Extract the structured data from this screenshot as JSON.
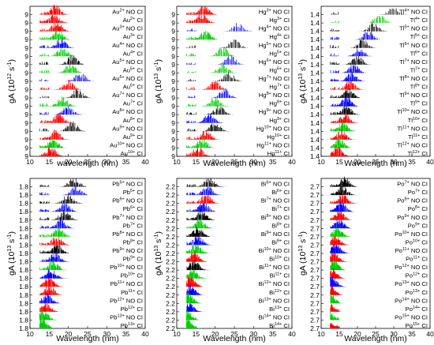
{
  "chart_data": [
    {
      "type": "line",
      "panel": "Au",
      "xlabel": "wavelength (nm)",
      "ylabel": "gA (10^12 s^-1)",
      "ylabel_parts": {
        "base": "gA (10",
        "exp": "12",
        "mid": " s",
        "exp2": "-1",
        "end": ")"
      },
      "xlim": [
        10,
        40
      ],
      "xticks": [
        10,
        15,
        20,
        25,
        30,
        35,
        40
      ],
      "ytick_label": "9",
      "series": [
        {
          "ion": "Au",
          "charge": "2+",
          "label": "NO CI",
          "color": "#ff0000",
          "peak_x": 16.5
        },
        {
          "ion": "Au",
          "charge": "2+",
          "label": "CI",
          "color": "#ff0000",
          "peak_x": 16.3
        },
        {
          "ion": "Au",
          "charge": "3+",
          "label": "NO CI",
          "color": "#ff0000",
          "peak_x": 17.0
        },
        {
          "ion": "Au",
          "charge": "3+",
          "label": "CI",
          "color": "#00cc00",
          "peak_x": 17.2
        },
        {
          "ion": "Au",
          "charge": "4+",
          "label": "NO CI",
          "color": "#0000ff",
          "peak_x": 18.0
        },
        {
          "ion": "Au",
          "charge": "4+",
          "label": "CI",
          "color": "#00cc00",
          "peak_x": 18.4
        },
        {
          "ion": "Au",
          "charge": "5+",
          "label": "NO CI",
          "color": "#000000",
          "peak_x": 21.0
        },
        {
          "ion": "Au",
          "charge": "5+",
          "label": "CI",
          "color": "#00cc00",
          "peak_x": 20.5
        },
        {
          "ion": "Au",
          "charge": "6+",
          "label": "NO CI",
          "color": "#0000ff",
          "peak_x": 23.0
        },
        {
          "ion": "Au",
          "charge": "6+",
          "label": "CI",
          "color": "#ff0000",
          "peak_x": 20.0
        },
        {
          "ion": "Au",
          "charge": "7+",
          "label": "NO CI",
          "color": "#000000",
          "peak_x": 22.5
        },
        {
          "ion": "Au",
          "charge": "7+",
          "label": "CI",
          "color": "#00cc00",
          "peak_x": 18.5
        },
        {
          "ion": "Au",
          "charge": "8+",
          "label": "NO CI",
          "color": "#0000ff",
          "peak_x": 20.0
        },
        {
          "ion": "Au",
          "charge": "8+",
          "label": "CI",
          "color": "#ff0000",
          "peak_x": 17.5
        },
        {
          "ion": "Au",
          "charge": "9+",
          "label": "NO CI",
          "color": "#000000",
          "peak_x": 21.0
        },
        {
          "ion": "Au",
          "charge": "9+",
          "label": "CI",
          "color": "#ff0000",
          "peak_x": 16.5
        },
        {
          "ion": "Au",
          "charge": "10+",
          "label": "NO CI",
          "color": "#00cc00",
          "peak_x": 16.0
        },
        {
          "ion": "Au",
          "charge": "10+",
          "label": "CI",
          "color": "#ff0000",
          "peak_x": 15.5
        }
      ]
    },
    {
      "type": "line",
      "panel": "Hg",
      "xlabel": "Wavelength (nm)",
      "ylabel": "gA (10^13 s^-1)",
      "ylabel_parts": {
        "base": "gA (10",
        "exp": "13",
        "mid": " s",
        "exp2": "-1",
        "end": ")"
      },
      "xlim": [
        10,
        40
      ],
      "xticks": [
        10,
        15,
        20,
        25,
        30,
        35,
        40
      ],
      "ytick_label": "9",
      "series": [
        {
          "ion": "Hg",
          "charge": "3+",
          "label": "NO CI",
          "color": "#ff0000",
          "peak_x": 17.0
        },
        {
          "ion": "Hg",
          "charge": "3+",
          "label": "CI",
          "color": "#ff0000",
          "peak_x": 16.5
        },
        {
          "ion": "Hg",
          "charge": "4+",
          "label": "NO CI",
          "color": "#0000ff",
          "peak_x": 26.0
        },
        {
          "ion": "Hg",
          "charge": "4+",
          "label": "CI",
          "color": "#00cc00",
          "peak_x": 17.5
        },
        {
          "ion": "Hg",
          "charge": "5+",
          "label": "NO CI",
          "color": "#000000",
          "peak_x": 25.0
        },
        {
          "ion": "Hg",
          "charge": "5+",
          "label": "CI",
          "color": "#00cc00",
          "peak_x": 22.0
        },
        {
          "ion": "Hg",
          "charge": "6+",
          "label": "NO CI",
          "color": "#0000ff",
          "peak_x": 24.0
        },
        {
          "ion": "Hg",
          "charge": "6+",
          "label": "CI",
          "color": "#00cc00",
          "peak_x": 22.0
        },
        {
          "ion": "Hg",
          "charge": "7+",
          "label": "NO CI",
          "color": "#000000",
          "peak_x": 23.5
        },
        {
          "ion": "Hg",
          "charge": "7+",
          "label": "CI",
          "color": "#ff0000",
          "peak_x": 20.0
        },
        {
          "ion": "Hg",
          "charge": "8+",
          "label": "NO CI",
          "color": "#0000ff",
          "peak_x": 22.5
        },
        {
          "ion": "Hg",
          "charge": "8+",
          "label": "CI",
          "color": "#00cc00",
          "peak_x": 20.0
        },
        {
          "ion": "Hg",
          "charge": "9+",
          "label": "NO CI",
          "color": "#000000",
          "peak_x": 21.0
        },
        {
          "ion": "Hg",
          "charge": "9+",
          "label": "CI",
          "color": "#0000ff",
          "peak_x": 18.5
        },
        {
          "ion": "Hg",
          "charge": "10+",
          "label": "NO CI",
          "color": "#000000",
          "peak_x": 20.0
        },
        {
          "ion": "Hg",
          "charge": "10+",
          "label": "CI",
          "color": "#ff0000",
          "peak_x": 17.5
        },
        {
          "ion": "Hg",
          "charge": "11+",
          "label": "NO CI",
          "color": "#00cc00",
          "peak_x": 16.5
        },
        {
          "ion": "Hg",
          "charge": "11+",
          "label": "CI",
          "color": "#ff0000",
          "peak_x": 15.5
        }
      ]
    },
    {
      "type": "line",
      "panel": "Tl",
      "xlabel": "Wavelength (nm)",
      "ylabel": "gA (10^13 s^-1)",
      "ylabel_parts": {
        "base": "gA (10",
        "exp": "13",
        "mid": " s",
        "exp2": "-1",
        "end": ")"
      },
      "xlim": [
        10,
        40
      ],
      "xticks": [
        10,
        15,
        20,
        25,
        30,
        35,
        40
      ],
      "ytick_label": "1.4",
      "series": [
        {
          "ion": "Tl",
          "charge": "4+",
          "label": "NO CI",
          "color": "#000000",
          "peak_x": 30.0
        },
        {
          "ion": "Tl",
          "charge": "4+",
          "label": "CI",
          "color": "#00cc00",
          "peak_x": 26.0
        },
        {
          "ion": "Tl",
          "charge": "5+",
          "label": "NO CI",
          "color": "#000000",
          "peak_x": 24.5
        },
        {
          "ion": "Tl",
          "charge": "5+",
          "label": "CI",
          "color": "#0000ff",
          "peak_x": 23.0
        },
        {
          "ion": "Tl",
          "charge": "6+",
          "label": "NO CI",
          "color": "#000000",
          "peak_x": 21.5
        },
        {
          "ion": "Tl",
          "charge": "6+",
          "label": "CI",
          "color": "#0000ff",
          "peak_x": 20.5
        },
        {
          "ion": "Tl",
          "charge": "7+",
          "label": "NO CI",
          "color": "#000000",
          "peak_x": 20.0
        },
        {
          "ion": "Tl",
          "charge": "7+",
          "label": "CI",
          "color": "#0000ff",
          "peak_x": 19.0
        },
        {
          "ion": "Tl",
          "charge": "8+",
          "label": "NO CI",
          "color": "#0000ff",
          "peak_x": 18.5
        },
        {
          "ion": "Tl",
          "charge": "8+",
          "label": "CI",
          "color": "#ff0000",
          "peak_x": 18.0
        },
        {
          "ion": "Tl",
          "charge": "9+",
          "label": "NO CI",
          "color": "#000000",
          "peak_x": 17.5
        },
        {
          "ion": "Tl",
          "charge": "9+",
          "label": "CI",
          "color": "#0000ff",
          "peak_x": 17.0
        },
        {
          "ion": "Tl",
          "charge": "10+",
          "label": "NO CI",
          "color": "#000000",
          "peak_x": 17.0
        },
        {
          "ion": "Tl",
          "charge": "10+",
          "label": "CI",
          "color": "#ff0000",
          "peak_x": 16.5
        },
        {
          "ion": "Tl",
          "charge": "11+",
          "label": "NO CI",
          "color": "#00cc00",
          "peak_x": 16.0
        },
        {
          "ion": "Tl",
          "charge": "11+",
          "label": "CI",
          "color": "#ff0000",
          "peak_x": 15.5
        },
        {
          "ion": "Tl",
          "charge": "12+",
          "label": "NO CI",
          "color": "#00cc00",
          "peak_x": 15.0
        },
        {
          "ion": "Tl",
          "charge": "12+",
          "label": "CI",
          "color": "#ff0000",
          "peak_x": 14.5
        }
      ]
    },
    {
      "type": "line",
      "panel": "Pb",
      "xlabel": "Wavelength (nm)",
      "ylabel": "gA (10^13 s^-1)",
      "ylabel_parts": {
        "base": "gA (10",
        "exp": "13",
        "mid": " s",
        "exp2": "-1",
        "end": ")"
      },
      "xlim": [
        10,
        40
      ],
      "xticks": [
        10,
        15,
        20,
        25,
        30,
        35,
        40
      ],
      "ytick_label": "1.8",
      "series": [
        {
          "ion": "Pb",
          "charge": "5+",
          "label": "NO CI",
          "color": "#000000",
          "peak_x": 21.5
        },
        {
          "ion": "Pb",
          "charge": "5+",
          "label": "CI",
          "color": "#0000ff",
          "peak_x": 22.0
        },
        {
          "ion": "Pb",
          "charge": "6+",
          "label": "NO CI",
          "color": "#000000",
          "peak_x": 20.0
        },
        {
          "ion": "Pb",
          "charge": "6+",
          "label": "CI",
          "color": "#0000ff",
          "peak_x": 19.0
        },
        {
          "ion": "Pb",
          "charge": "7+",
          "label": "NO CI",
          "color": "#000000",
          "peak_x": 19.0
        },
        {
          "ion": "Pb",
          "charge": "7+",
          "label": "CI",
          "color": "#0000ff",
          "peak_x": 18.0
        },
        {
          "ion": "Pb",
          "charge": "8+",
          "label": "NO CI",
          "color": "#00cc00",
          "peak_x": 17.5
        },
        {
          "ion": "Pb",
          "charge": "8+",
          "label": "CI",
          "color": "#ff0000",
          "peak_x": 17.0
        },
        {
          "ion": "Pb",
          "charge": "9+",
          "label": "NO CI",
          "color": "#000000",
          "peak_x": 17.0
        },
        {
          "ion": "Pb",
          "charge": "9+",
          "label": "CI",
          "color": "#0000ff",
          "peak_x": 16.5
        },
        {
          "ion": "Pb",
          "charge": "10+",
          "label": "NO CI",
          "color": "#00cc00",
          "peak_x": 16.0
        },
        {
          "ion": "Pb",
          "charge": "10+",
          "label": "CI",
          "color": "#0000ff",
          "peak_x": 15.5
        },
        {
          "ion": "Pb",
          "charge": "11+",
          "label": "NO CI",
          "color": "#ff0000",
          "peak_x": 15.0
        },
        {
          "ion": "Pb",
          "charge": "11+",
          "label": "CI",
          "color": "#ff0000",
          "peak_x": 15.0
        },
        {
          "ion": "Pb",
          "charge": "12+",
          "label": "NO CI",
          "color": "#0000ff",
          "peak_x": 14.5
        },
        {
          "ion": "Pb",
          "charge": "12+",
          "label": "CI",
          "color": "#ff0000",
          "peak_x": 14.0
        },
        {
          "ion": "Pb",
          "charge": "13+",
          "label": "NO CI",
          "color": "#00cc00",
          "peak_x": 13.5
        },
        {
          "ion": "Pb",
          "charge": "13+",
          "label": "CI",
          "color": "#00cc00",
          "peak_x": 13.0
        }
      ]
    },
    {
      "type": "line",
      "panel": "Bi",
      "xlabel": "Wavelength (nm)",
      "ylabel": "gA (10^13 s^-1)",
      "ylabel_parts": {
        "base": "gA (10",
        "exp": "13",
        "mid": " s",
        "exp2": "-1",
        "end": ")"
      },
      "xlim": [
        10,
        40
      ],
      "xticks": [
        10,
        15,
        20,
        25,
        30,
        35,
        40
      ],
      "ytick_label": "2.2",
      "series": [
        {
          "ion": "Bi",
          "charge": "6+",
          "label": "NO CI",
          "color": "#000000",
          "peak_x": 18.5
        },
        {
          "ion": "Bi",
          "charge": "6+",
          "label": "CI",
          "color": "#0000ff",
          "peak_x": 18.0
        },
        {
          "ion": "Bi",
          "charge": "7+",
          "label": "NO CI",
          "color": "#ff0000",
          "peak_x": 17.5
        },
        {
          "ion": "Bi",
          "charge": "7+",
          "label": "CI",
          "color": "#0000ff",
          "peak_x": 17.0
        },
        {
          "ion": "Bi",
          "charge": "8+",
          "label": "NO CI",
          "color": "#000000",
          "peak_x": 16.5
        },
        {
          "ion": "Bi",
          "charge": "8+",
          "label": "CI",
          "color": "#00cc00",
          "peak_x": 16.0
        },
        {
          "ion": "Bi",
          "charge": "9+",
          "label": "NO CI",
          "color": "#000000",
          "peak_x": 15.5
        },
        {
          "ion": "Bi",
          "charge": "9+",
          "label": "CI",
          "color": "#0000ff",
          "peak_x": 15.5
        },
        {
          "ion": "Bi",
          "charge": "10+",
          "label": "NO CI",
          "color": "#00cc00",
          "peak_x": 15.0
        },
        {
          "ion": "Bi",
          "charge": "10+",
          "label": "CI",
          "color": "#ff0000",
          "peak_x": 14.5
        },
        {
          "ion": "Bi",
          "charge": "11+",
          "label": "NO CI",
          "color": "#000000",
          "peak_x": 14.5
        },
        {
          "ion": "Bi",
          "charge": "11+",
          "label": "CI",
          "color": "#00cc00",
          "peak_x": 14.0
        },
        {
          "ion": "Bi",
          "charge": "12+",
          "label": "NO CI",
          "color": "#ff0000",
          "peak_x": 13.5
        },
        {
          "ion": "Bi",
          "charge": "12+",
          "label": "CI",
          "color": "#0000ff",
          "peak_x": 13.5
        },
        {
          "ion": "Bi",
          "charge": "13+",
          "label": "NO CI",
          "color": "#00cc00",
          "peak_x": 13.0
        },
        {
          "ion": "Bi",
          "charge": "13+",
          "label": "CI",
          "color": "#0000ff",
          "peak_x": 13.0
        },
        {
          "ion": "Bi",
          "charge": "14+",
          "label": "NO CI",
          "color": "#00cc00",
          "peak_x": 12.5
        },
        {
          "ion": "Bi",
          "charge": "14+",
          "label": "CI",
          "color": "#00cc00",
          "peak_x": 12.5
        }
      ]
    },
    {
      "type": "line",
      "panel": "Po",
      "xlabel": "Wavelength (nm)",
      "ylabel": "gA (10^13 s^-1)",
      "ylabel_parts": {
        "base": "gA (10",
        "exp": "13",
        "mid": " s",
        "exp2": "-1",
        "end": ")"
      },
      "xlim": [
        10,
        40
      ],
      "xticks": [
        10,
        15,
        20,
        25,
        30,
        35,
        40
      ],
      "ytick_label": "2.7",
      "series": [
        {
          "ion": "Po",
          "charge": "7+",
          "label": "NO CI",
          "color": "#000000",
          "peak_x": 16.5
        },
        {
          "ion": "Po",
          "charge": "7+",
          "label": "CI",
          "color": "#000000",
          "peak_x": 16.0
        },
        {
          "ion": "Po",
          "charge": "8+",
          "label": "NO CI",
          "color": "#ff0000",
          "peak_x": 16.0
        },
        {
          "ion": "Po",
          "charge": "8+",
          "label": "CI",
          "color": "#0000ff",
          "peak_x": 15.5
        },
        {
          "ion": "Po",
          "charge": "9+",
          "label": "NO CI",
          "color": "#ff0000",
          "peak_x": 15.0
        },
        {
          "ion": "Po",
          "charge": "9+",
          "label": "CI",
          "color": "#0000ff",
          "peak_x": 15.0
        },
        {
          "ion": "Po",
          "charge": "10+",
          "label": "NO CI",
          "color": "#00cc00",
          "peak_x": 14.5
        },
        {
          "ion": "Po",
          "charge": "10+",
          "label": "CI",
          "color": "#ff0000",
          "peak_x": 14.0
        },
        {
          "ion": "Po",
          "charge": "11+",
          "label": "NO CI",
          "color": "#0000ff",
          "peak_x": 14.0
        },
        {
          "ion": "Po",
          "charge": "11+",
          "label": "CI",
          "color": "#ff0000",
          "peak_x": 13.5
        },
        {
          "ion": "Po",
          "charge": "12+",
          "label": "NO CI",
          "color": "#00cc00",
          "peak_x": 13.5
        },
        {
          "ion": "Po",
          "charge": "12+",
          "label": "CI",
          "color": "#ff0000",
          "peak_x": 13.0
        },
        {
          "ion": "Po",
          "charge": "13+",
          "label": "NO CI",
          "color": "#0000ff",
          "peak_x": 13.0
        },
        {
          "ion": "Po",
          "charge": "13+",
          "label": "CI",
          "color": "#ff0000",
          "peak_x": 12.5
        },
        {
          "ion": "Po",
          "charge": "14+",
          "label": "NO CI",
          "color": "#00cc00",
          "peak_x": 12.5
        },
        {
          "ion": "Po",
          "charge": "14+",
          "label": "CI",
          "color": "#ff0000",
          "peak_x": 12.0
        },
        {
          "ion": "Po",
          "charge": "15+",
          "label": "NO CI",
          "color": "#00cc00",
          "peak_x": 12.0
        },
        {
          "ion": "Po",
          "charge": "15+",
          "label": "CI",
          "color": "#ff0000",
          "peak_x": 11.5
        }
      ]
    }
  ]
}
